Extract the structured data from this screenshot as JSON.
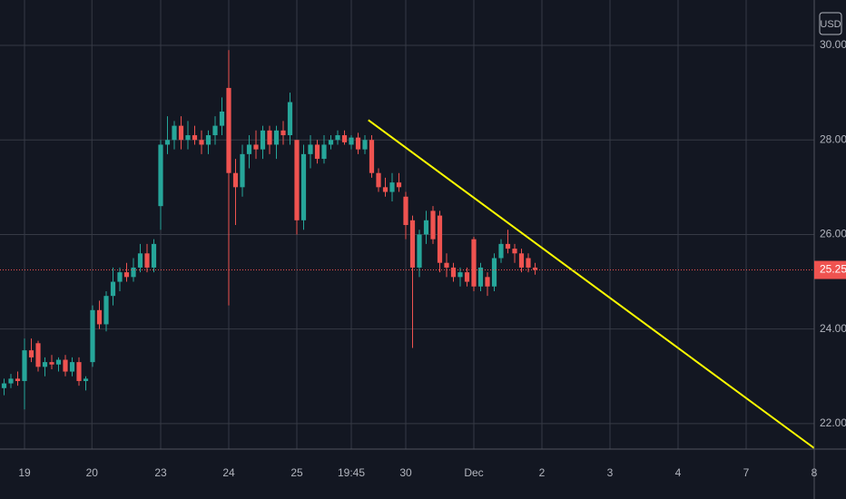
{
  "chart_data": {
    "type": "candlestick",
    "currency": "USD",
    "up_color": "#26a69a",
    "down_color": "#ef5350",
    "xlim": [
      -3.6,
      116
    ],
    "ylim": [
      21.46,
      30.96
    ],
    "xticks": [
      {
        "value": 0,
        "label": "19"
      },
      {
        "value": 9.9,
        "label": "20"
      },
      {
        "value": 20,
        "label": "23"
      },
      {
        "value": 30,
        "label": "24"
      },
      {
        "value": 40,
        "label": "25"
      },
      {
        "value": 48,
        "label": "19:45"
      },
      {
        "value": 56,
        "label": "30"
      },
      {
        "value": 66,
        "label": "Dec"
      },
      {
        "value": 76,
        "label": "2"
      },
      {
        "value": 86,
        "label": "3"
      },
      {
        "value": 96,
        "label": "4"
      },
      {
        "value": 106,
        "label": "7"
      },
      {
        "value": 116,
        "label": "8"
      }
    ],
    "yticks": [
      {
        "value": 22,
        "label": "22.00"
      },
      {
        "value": 24,
        "label": "24.00"
      },
      {
        "value": 26,
        "label": "26.00"
      },
      {
        "value": 28,
        "label": "28.00"
      },
      {
        "value": 30,
        "label": "30.00"
      }
    ],
    "grid": true,
    "x": [
      -3,
      -2,
      -1,
      0,
      1,
      2,
      3,
      4,
      5,
      6,
      7,
      8,
      9,
      10,
      11,
      12,
      13,
      14,
      15,
      16,
      17,
      18,
      19,
      20,
      21,
      22,
      23,
      24,
      25,
      26,
      27,
      28,
      29,
      30,
      31,
      32,
      33,
      34,
      35,
      36,
      37,
      38,
      39,
      40,
      41,
      42,
      43,
      44,
      45,
      46,
      47,
      48,
      49,
      50,
      51,
      52,
      53,
      54,
      55,
      56,
      57,
      58,
      59,
      60,
      61,
      62,
      63,
      64,
      65,
      66,
      67,
      68,
      69,
      70,
      71,
      72,
      73,
      74,
      75
    ],
    "ohlc": [
      [
        22.75,
        22.95,
        22.6,
        22.85
      ],
      [
        22.85,
        23.05,
        22.75,
        22.95
      ],
      [
        22.95,
        23.1,
        22.8,
        22.9
      ],
      [
        22.9,
        23.8,
        22.3,
        23.55
      ],
      [
        23.55,
        23.8,
        23.3,
        23.4
      ],
      [
        23.7,
        23.75,
        23.1,
        23.2
      ],
      [
        23.2,
        23.4,
        23.0,
        23.3
      ],
      [
        23.3,
        23.45,
        23.15,
        23.25
      ],
      [
        23.25,
        23.4,
        23.1,
        23.35
      ],
      [
        23.35,
        23.45,
        23.0,
        23.1
      ],
      [
        23.1,
        23.4,
        23.0,
        23.3
      ],
      [
        23.3,
        23.4,
        22.8,
        22.9
      ],
      [
        22.9,
        23.0,
        22.7,
        22.95
      ],
      [
        23.3,
        24.5,
        23.2,
        24.4
      ],
      [
        24.4,
        24.6,
        24.0,
        24.1
      ],
      [
        24.1,
        24.8,
        23.95,
        24.7
      ],
      [
        24.7,
        25.3,
        24.5,
        25.0
      ],
      [
        25.0,
        25.3,
        24.8,
        25.2
      ],
      [
        25.2,
        25.4,
        25.0,
        25.1
      ],
      [
        25.1,
        25.5,
        25.0,
        25.3
      ],
      [
        25.3,
        25.8,
        25.2,
        25.6
      ],
      [
        25.6,
        25.8,
        25.2,
        25.3
      ],
      [
        25.3,
        25.9,
        25.2,
        25.8
      ],
      [
        26.6,
        28.0,
        26.1,
        27.9
      ],
      [
        27.9,
        28.5,
        27.7,
        28.0
      ],
      [
        28.0,
        28.4,
        27.8,
        28.3
      ],
      [
        28.3,
        28.5,
        27.8,
        28.0
      ],
      [
        28.0,
        28.4,
        27.8,
        28.1
      ],
      [
        28.1,
        28.3,
        27.9,
        28.0
      ],
      [
        28.0,
        28.2,
        27.7,
        27.9
      ],
      [
        27.9,
        28.2,
        27.7,
        28.1
      ],
      [
        28.1,
        28.5,
        27.9,
        28.3
      ],
      [
        28.3,
        28.9,
        28.1,
        28.6
      ],
      [
        29.1,
        29.9,
        24.5,
        27.3
      ],
      [
        27.3,
        27.6,
        26.2,
        27.0
      ],
      [
        27.0,
        27.9,
        26.8,
        27.7
      ],
      [
        27.7,
        28.1,
        27.4,
        27.9
      ],
      [
        27.9,
        28.2,
        27.6,
        27.8
      ],
      [
        27.8,
        28.3,
        27.6,
        28.2
      ],
      [
        28.2,
        28.3,
        27.7,
        27.9
      ],
      [
        27.9,
        28.3,
        27.6,
        28.2
      ],
      [
        28.2,
        28.4,
        27.9,
        28.1
      ],
      [
        28.1,
        29.0,
        27.9,
        28.8
      ],
      [
        28.0,
        28.0,
        26.0,
        26.3
      ],
      [
        26.3,
        27.9,
        26.1,
        27.7
      ],
      [
        27.7,
        28.1,
        27.4,
        27.9
      ],
      [
        27.9,
        28.0,
        27.5,
        27.6
      ],
      [
        27.6,
        28.1,
        27.5,
        27.9
      ],
      [
        27.9,
        28.1,
        27.8,
        28.0
      ],
      [
        28.0,
        28.2,
        27.9,
        28.1
      ],
      [
        28.1,
        28.2,
        27.9,
        27.95
      ],
      [
        27.9,
        28.1,
        27.8,
        28.05
      ],
      [
        28.05,
        28.15,
        27.7,
        27.8
      ],
      [
        27.8,
        28.1,
        27.7,
        28.0
      ],
      [
        28.0,
        28.1,
        27.2,
        27.3
      ],
      [
        27.3,
        27.4,
        26.9,
        27.0
      ],
      [
        27.0,
        27.2,
        26.8,
        26.9
      ],
      [
        26.9,
        27.3,
        26.7,
        27.1
      ],
      [
        27.1,
        27.3,
        26.9,
        27.0
      ],
      [
        26.8,
        26.9,
        25.9,
        26.2
      ],
      [
        26.3,
        26.4,
        23.6,
        25.3
      ],
      [
        25.3,
        26.1,
        25.1,
        26.0
      ],
      [
        26.0,
        26.5,
        25.8,
        26.3
      ],
      [
        26.5,
        26.6,
        25.8,
        25.9
      ],
      [
        26.4,
        26.5,
        25.2,
        25.4
      ],
      [
        25.4,
        25.6,
        25.1,
        25.3
      ],
      [
        25.3,
        25.4,
        25.0,
        25.1
      ],
      [
        25.1,
        25.3,
        24.9,
        25.2
      ],
      [
        25.2,
        25.3,
        24.9,
        25.0
      ],
      [
        25.9,
        25.95,
        24.8,
        24.9
      ],
      [
        24.9,
        25.4,
        24.8,
        25.3
      ],
      [
        25.1,
        25.2,
        24.7,
        24.9
      ],
      [
        24.9,
        25.6,
        24.8,
        25.5
      ],
      [
        25.5,
        25.9,
        25.4,
        25.8
      ],
      [
        25.8,
        26.1,
        25.6,
        25.7
      ],
      [
        25.7,
        25.8,
        25.4,
        25.6
      ],
      [
        25.6,
        25.7,
        25.2,
        25.3
      ],
      [
        25.5,
        25.6,
        25.2,
        25.3
      ],
      [
        25.3,
        25.4,
        25.15,
        25.25
      ]
    ],
    "last_price": 25.25,
    "last_price_color": "#ef5350",
    "trendline": {
      "color": "#ffff00",
      "x": [
        50.5,
        116
      ],
      "y": [
        28.42,
        21.48
      ]
    }
  }
}
